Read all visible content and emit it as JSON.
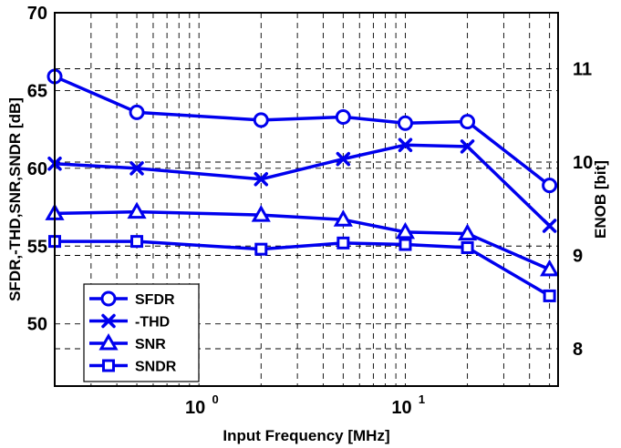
{
  "chart_data": {
    "type": "line",
    "xlabel": "Input Frequency [MHz]",
    "ylabel": "SFDR,-THD,SNR,SNDR [dB]",
    "y2label": "ENOB [bit]",
    "xscale": "log",
    "xlim": [
      0.2,
      55
    ],
    "ylim": [
      46,
      70
    ],
    "y2lim": [
      7.6,
      11.6
    ],
    "grid": true,
    "legend_position": "bottom-left",
    "x_ticks": [
      {
        "value": 1,
        "base": "10",
        "exp": "0"
      },
      {
        "value": 10,
        "base": "10",
        "exp": "1"
      }
    ],
    "y_ticks": [
      "50",
      "55",
      "60",
      "65",
      "70"
    ],
    "y2_ticks": [
      "8",
      "9",
      "10",
      "11"
    ],
    "x": [
      0.2,
      0.5,
      2,
      5,
      10,
      20,
      50
    ],
    "series": [
      {
        "name": "SFDR",
        "marker": "circle",
        "values": [
          65.9,
          63.6,
          63.1,
          63.3,
          62.9,
          63.0,
          58.9
        ]
      },
      {
        "name": "-THD",
        "marker": "x",
        "values": [
          60.3,
          60.0,
          59.3,
          60.6,
          61.5,
          61.4,
          56.3
        ]
      },
      {
        "name": "SNR",
        "marker": "triangle",
        "values": [
          57.1,
          57.2,
          57.0,
          56.7,
          55.9,
          55.8,
          53.5
        ]
      },
      {
        "name": "SNDR",
        "marker": "square",
        "values": [
          55.3,
          55.3,
          54.8,
          55.2,
          55.1,
          54.9,
          51.8
        ]
      }
    ],
    "colors": {
      "series": "#0000ee",
      "frame": "#000000"
    }
  }
}
